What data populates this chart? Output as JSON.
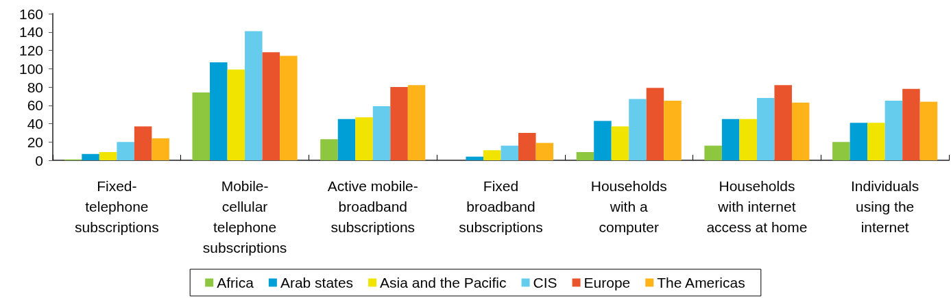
{
  "chart_data": {
    "type": "bar",
    "categories": [
      "Fixed-\ntelephone\nsubscriptions",
      "Mobile-\ncellular\ntelephone\nsubscriptions",
      "Active mobile-\nbroadband\nsubscriptions",
      "Fixed\nbroadband\nsubscriptions",
      "Households\nwith a\ncomputer",
      "Households\nwith internet\naccess at home",
      "Individuals\nusing the\ninternet"
    ],
    "series": [
      {
        "name": "Africa",
        "color": "#8dc63f",
        "values": [
          1,
          74,
          23,
          0,
          9,
          16,
          20
        ]
      },
      {
        "name": "Arab states",
        "color": "#00a0d6",
        "values": [
          7,
          107,
          45,
          4,
          43,
          45,
          41
        ]
      },
      {
        "name": "Asia and the Pacific",
        "color": "#f0e400",
        "values": [
          9,
          99,
          47,
          11,
          37,
          45,
          41
        ]
      },
      {
        "name": "CIS",
        "color": "#66ccee",
        "values": [
          20,
          141,
          59,
          16,
          67,
          68,
          65
        ]
      },
      {
        "name": "Europe",
        "color": "#e9542c",
        "values": [
          37,
          118,
          80,
          30,
          79,
          82,
          78
        ]
      },
      {
        "name": "The Americas",
        "color": "#feb418",
        "values": [
          24,
          114,
          82,
          19,
          65,
          63,
          64
        ]
      }
    ],
    "ylim": [
      0,
      160
    ],
    "yticks": [
      0,
      20,
      40,
      60,
      80,
      100,
      120,
      140,
      160
    ],
    "grid": false,
    "legend": "bottom"
  }
}
